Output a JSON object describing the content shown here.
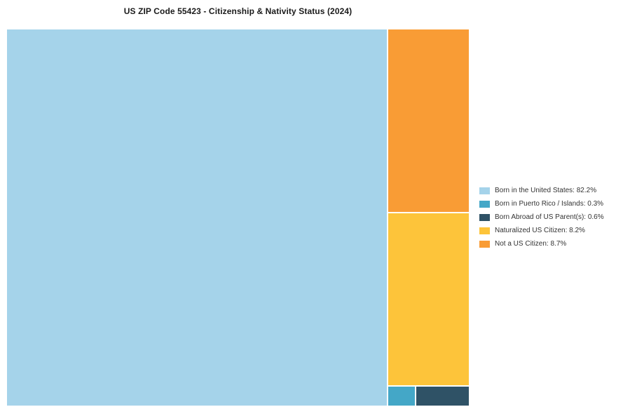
{
  "chart_data": {
    "type": "treemap",
    "title": "US ZIP Code 55423 - Citizenship & Nativity Status (2024)",
    "unit": "%",
    "legend_position": "right-middle",
    "layout": "largest-item-left-column, remainder-stacked-right, smallest-two-bottom-row",
    "background_color": "#ffffff",
    "items": [
      {
        "key": "us_born",
        "label": "Born in the United States",
        "value": 82.2,
        "display": "Born in the United States: 82.2%",
        "color": "#A5D3EA"
      },
      {
        "key": "pr_born",
        "label": "Born in Puerto Rico / Islands",
        "value": 0.3,
        "display": "Born in Puerto Rico / Islands: 0.3%",
        "color": "#44A7C7"
      },
      {
        "key": "abroad_born",
        "label": "Born Abroad of US Parent(s)",
        "value": 0.6,
        "display": "Born Abroad of US Parent(s): 0.6%",
        "color": "#2F5266"
      },
      {
        "key": "naturalized",
        "label": "Naturalized US Citizen",
        "value": 8.2,
        "display": "Naturalized US Citizen: 8.2%",
        "color": "#FDC43A"
      },
      {
        "key": "not_citizen",
        "label": "Not a US Citizen",
        "value": 8.7,
        "display": "Not a US Citizen: 8.7%",
        "color": "#F99C35"
      }
    ]
  }
}
